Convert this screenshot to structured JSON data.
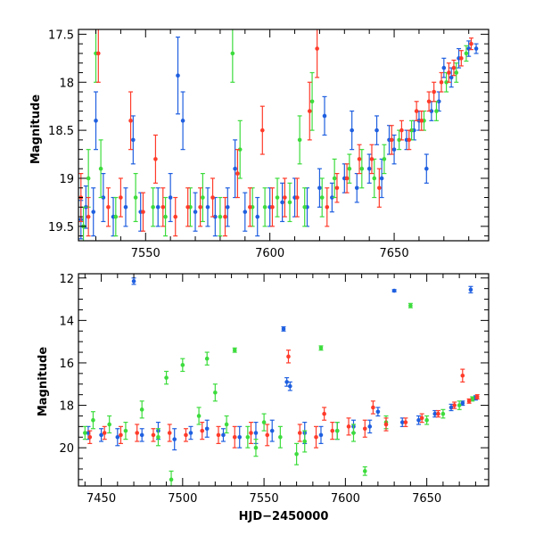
{
  "chart_data": [
    {
      "type": "scatter",
      "title": "",
      "xlabel": "",
      "ylabel": "Magnitude",
      "xlim": [
        7523,
        7688
      ],
      "ylim": [
        19.65,
        17.45
      ],
      "y_inverted": true,
      "xticks": [
        7550,
        7600,
        7650
      ],
      "yticks": [
        17.5,
        18,
        18.5,
        19,
        19.5
      ],
      "ytick_labels": [
        "17.5",
        "18",
        "18.5",
        "19",
        "19.5"
      ],
      "series": [
        {
          "color": "#1f5fe0",
          "points": [
            [
              7524,
              19.43,
              0.2
            ],
            [
              7526,
              19.3,
              0.22
            ],
            [
              7529,
              19.35,
              0.25
            ],
            [
              7530,
              18.4,
              0.3
            ],
            [
              7533,
              19.2,
              0.25
            ],
            [
              7537,
              19.4,
              0.2
            ],
            [
              7542,
              19.3,
              0.2
            ],
            [
              7545,
              18.6,
              0.25
            ],
            [
              7548,
              19.35,
              0.2
            ],
            [
              7555,
              19.3,
              0.2
            ],
            [
              7560,
              19.2,
              0.25
            ],
            [
              7563,
              17.93,
              0.4
            ],
            [
              7565,
              18.4,
              0.3
            ],
            [
              7570,
              19.35,
              0.2
            ],
            [
              7575,
              19.3,
              0.2
            ],
            [
              7578,
              19.4,
              0.2
            ],
            [
              7583,
              19.3,
              0.2
            ],
            [
              7586,
              18.9,
              0.3
            ],
            [
              7590,
              19.35,
              0.2
            ],
            [
              7595,
              19.4,
              0.2
            ],
            [
              7600,
              19.3,
              0.2
            ],
            [
              7605,
              19.25,
              0.2
            ],
            [
              7610,
              19.2,
              0.2
            ],
            [
              7615,
              19.3,
              0.2
            ],
            [
              7620,
              19.1,
              0.2
            ],
            [
              7622,
              18.35,
              0.2
            ],
            [
              7625,
              19.2,
              0.15
            ],
            [
              7630,
              19.0,
              0.15
            ],
            [
              7633,
              18.5,
              0.2
            ],
            [
              7635,
              19.1,
              0.15
            ],
            [
              7640,
              18.9,
              0.15
            ],
            [
              7643,
              18.5,
              0.15
            ],
            [
              7645,
              19.0,
              0.2
            ],
            [
              7648,
              18.6,
              0.15
            ],
            [
              7650,
              18.7,
              0.15
            ],
            [
              7655,
              18.6,
              0.1
            ],
            [
              7658,
              18.5,
              0.1
            ],
            [
              7660,
              18.4,
              0.1
            ],
            [
              7663,
              18.9,
              0.15
            ],
            [
              7665,
              18.3,
              0.1
            ],
            [
              7668,
              18.2,
              0.1
            ],
            [
              7670,
              17.85,
              0.1
            ],
            [
              7673,
              17.95,
              0.1
            ],
            [
              7676,
              17.75,
              0.1
            ],
            [
              7680,
              17.65,
              0.08
            ],
            [
              7683,
              17.65,
              0.05
            ]
          ]
        },
        {
          "color": "#3ddc3d",
          "points": [
            [
              7525,
              19.5,
              0.2
            ],
            [
              7527,
              19.0,
              0.3
            ],
            [
              7530,
              17.7,
              0.3
            ],
            [
              7532,
              18.9,
              0.3
            ],
            [
              7538,
              19.4,
              0.2
            ],
            [
              7546,
              19.2,
              0.25
            ],
            [
              7553,
              19.3,
              0.2
            ],
            [
              7558,
              19.4,
              0.2
            ],
            [
              7568,
              19.3,
              0.2
            ],
            [
              7573,
              19.2,
              0.25
            ],
            [
              7580,
              19.4,
              0.2
            ],
            [
              7585,
              17.7,
              0.3
            ],
            [
              7588,
              18.7,
              0.3
            ],
            [
              7593,
              19.3,
              0.2
            ],
            [
              7598,
              19.3,
              0.2
            ],
            [
              7603,
              19.2,
              0.2
            ],
            [
              7608,
              19.25,
              0.2
            ],
            [
              7612,
              18.6,
              0.25
            ],
            [
              7614,
              19.3,
              0.2
            ],
            [
              7617,
              18.2,
              0.3
            ],
            [
              7621,
              19.2,
              0.2
            ],
            [
              7626,
              19.0,
              0.2
            ],
            [
              7632,
              18.9,
              0.15
            ],
            [
              7637,
              18.9,
              0.2
            ],
            [
              7642,
              19.0,
              0.2
            ],
            [
              7646,
              18.8,
              0.15
            ],
            [
              7652,
              18.6,
              0.1
            ],
            [
              7657,
              18.5,
              0.1
            ],
            [
              7662,
              18.4,
              0.1
            ],
            [
              7667,
              18.3,
              0.1
            ],
            [
              7671,
              18.0,
              0.1
            ],
            [
              7675,
              17.9,
              0.1
            ],
            [
              7679,
              17.7,
              0.08
            ]
          ]
        },
        {
          "color": "#ff3b2a",
          "points": [
            [
              7524,
              19.2,
              0.25
            ],
            [
              7527,
              19.4,
              0.2
            ],
            [
              7531,
              17.7,
              0.3
            ],
            [
              7535,
              19.3,
              0.2
            ],
            [
              7540,
              19.2,
              0.2
            ],
            [
              7544,
              18.4,
              0.3
            ],
            [
              7549,
              19.35,
              0.2
            ],
            [
              7554,
              18.8,
              0.25
            ],
            [
              7557,
              19.3,
              0.2
            ],
            [
              7562,
              19.4,
              0.2
            ],
            [
              7567,
              19.3,
              0.2
            ],
            [
              7572,
              19.3,
              0.2
            ],
            [
              7577,
              19.2,
              0.2
            ],
            [
              7582,
              19.4,
              0.2
            ],
            [
              7587,
              18.95,
              0.25
            ],
            [
              7592,
              19.3,
              0.2
            ],
            [
              7597,
              18.5,
              0.25
            ],
            [
              7601,
              19.3,
              0.2
            ],
            [
              7606,
              19.2,
              0.2
            ],
            [
              7611,
              19.2,
              0.2
            ],
            [
              7616,
              18.3,
              0.3
            ],
            [
              7619,
              17.65,
              0.3
            ],
            [
              7623,
              19.3,
              0.2
            ],
            [
              7627,
              19.1,
              0.15
            ],
            [
              7631,
              19.0,
              0.15
            ],
            [
              7636,
              18.8,
              0.15
            ],
            [
              7641,
              18.8,
              0.15
            ],
            [
              7644,
              19.1,
              0.2
            ],
            [
              7649,
              18.6,
              0.15
            ],
            [
              7653,
              18.5,
              0.1
            ],
            [
              7656,
              18.6,
              0.1
            ],
            [
              7659,
              18.3,
              0.1
            ],
            [
              7661,
              18.4,
              0.1
            ],
            [
              7664,
              18.2,
              0.1
            ],
            [
              7666,
              18.1,
              0.1
            ],
            [
              7669,
              18.0,
              0.1
            ],
            [
              7672,
              17.9,
              0.1
            ],
            [
              7674,
              17.85,
              0.08
            ],
            [
              7677,
              17.75,
              0.08
            ],
            [
              7681,
              17.6,
              0.06
            ]
          ]
        }
      ]
    },
    {
      "type": "scatter",
      "title": "",
      "xlabel": "HJD−2450000",
      "ylabel": "Magnitude",
      "xlim": [
        7436,
        7688
      ],
      "ylim": [
        21.8,
        11.8
      ],
      "y_inverted": true,
      "xticks": [
        7450,
        7500,
        7550,
        7600,
        7650
      ],
      "yticks": [
        12,
        14,
        16,
        18,
        20
      ],
      "ytick_labels": [
        "12",
        "14",
        "16",
        "18",
        "20"
      ],
      "series": [
        {
          "color": "#1f5fe0",
          "points": [
            [
              7442,
              19.3,
              0.3
            ],
            [
              7450,
              19.4,
              0.3
            ],
            [
              7460,
              19.5,
              0.4
            ],
            [
              7470,
              12.15,
              0.15
            ],
            [
              7475,
              19.4,
              0.3
            ],
            [
              7485,
              19.2,
              0.4
            ],
            [
              7495,
              19.6,
              0.5
            ],
            [
              7505,
              19.3,
              0.3
            ],
            [
              7515,
              19.1,
              0.4
            ],
            [
              7525,
              19.4,
              0.3
            ],
            [
              7535,
              19.5,
              0.5
            ],
            [
              7545,
              19.3,
              0.5
            ],
            [
              7555,
              19.2,
              0.5
            ],
            [
              7562,
              14.4,
              0.1
            ],
            [
              7564,
              16.9,
              0.2
            ],
            [
              7566,
              17.1,
              0.2
            ],
            [
              7575,
              19.3,
              0.5
            ],
            [
              7585,
              19.4,
              0.4
            ],
            [
              7595,
              19.2,
              0.4
            ],
            [
              7605,
              19.0,
              0.3
            ],
            [
              7615,
              19.0,
              0.3
            ],
            [
              7620,
              18.3,
              0.2
            ],
            [
              7630,
              12.6,
              0.05
            ],
            [
              7635,
              18.8,
              0.2
            ],
            [
              7645,
              18.7,
              0.2
            ],
            [
              7655,
              18.4,
              0.15
            ],
            [
              7665,
              18.1,
              0.15
            ],
            [
              7672,
              17.9,
              0.1
            ],
            [
              7677,
              12.55,
              0.15
            ],
            [
              7680,
              17.65,
              0.1
            ]
          ]
        },
        {
          "color": "#3ddc3d",
          "points": [
            [
              7440,
              19.3,
              0.3
            ],
            [
              7445,
              18.7,
              0.4
            ],
            [
              7455,
              18.9,
              0.4
            ],
            [
              7465,
              19.2,
              0.4
            ],
            [
              7475,
              18.2,
              0.4
            ],
            [
              7485,
              19.5,
              0.4
            ],
            [
              7490,
              16.7,
              0.3
            ],
            [
              7493,
              21.5,
              0.4
            ],
            [
              7500,
              16.1,
              0.3
            ],
            [
              7510,
              18.5,
              0.4
            ],
            [
              7515,
              15.8,
              0.3
            ],
            [
              7520,
              17.4,
              0.4
            ],
            [
              7527,
              18.9,
              0.4
            ],
            [
              7532,
              15.4,
              0.1
            ],
            [
              7540,
              19.5,
              0.5
            ],
            [
              7545,
              20.0,
              0.4
            ],
            [
              7550,
              18.8,
              0.4
            ],
            [
              7560,
              19.5,
              0.5
            ],
            [
              7570,
              20.3,
              0.5
            ],
            [
              7575,
              19.7,
              0.5
            ],
            [
              7585,
              15.3,
              0.1
            ],
            [
              7595,
              19.2,
              0.4
            ],
            [
              7605,
              19.3,
              0.4
            ],
            [
              7612,
              21.1,
              0.2
            ],
            [
              7625,
              18.8,
              0.3
            ],
            [
              7640,
              13.3,
              0.1
            ],
            [
              7650,
              18.7,
              0.2
            ],
            [
              7660,
              18.4,
              0.2
            ],
            [
              7670,
              18.0,
              0.2
            ],
            [
              7678,
              17.7,
              0.1
            ]
          ]
        },
        {
          "color": "#ff3b2a",
          "points": [
            [
              7443,
              19.5,
              0.3
            ],
            [
              7452,
              19.3,
              0.3
            ],
            [
              7462,
              19.4,
              0.4
            ],
            [
              7472,
              19.3,
              0.4
            ],
            [
              7482,
              19.4,
              0.3
            ],
            [
              7492,
              19.3,
              0.4
            ],
            [
              7502,
              19.4,
              0.3
            ],
            [
              7512,
              19.2,
              0.4
            ],
            [
              7522,
              19.4,
              0.4
            ],
            [
              7532,
              19.5,
              0.5
            ],
            [
              7542,
              19.3,
              0.5
            ],
            [
              7552,
              19.4,
              0.5
            ],
            [
              7565,
              15.7,
              0.3
            ],
            [
              7572,
              19.3,
              0.4
            ],
            [
              7582,
              19.5,
              0.5
            ],
            [
              7587,
              18.4,
              0.3
            ],
            [
              7592,
              19.2,
              0.4
            ],
            [
              7602,
              19.0,
              0.4
            ],
            [
              7612,
              19.1,
              0.4
            ],
            [
              7617,
              18.1,
              0.3
            ],
            [
              7625,
              18.9,
              0.3
            ],
            [
              7637,
              18.8,
              0.2
            ],
            [
              7647,
              18.6,
              0.2
            ],
            [
              7657,
              18.4,
              0.15
            ],
            [
              7667,
              18.0,
              0.15
            ],
            [
              7672,
              16.6,
              0.3
            ],
            [
              7676,
              17.8,
              0.1
            ],
            [
              7681,
              17.6,
              0.1
            ]
          ]
        }
      ]
    }
  ]
}
